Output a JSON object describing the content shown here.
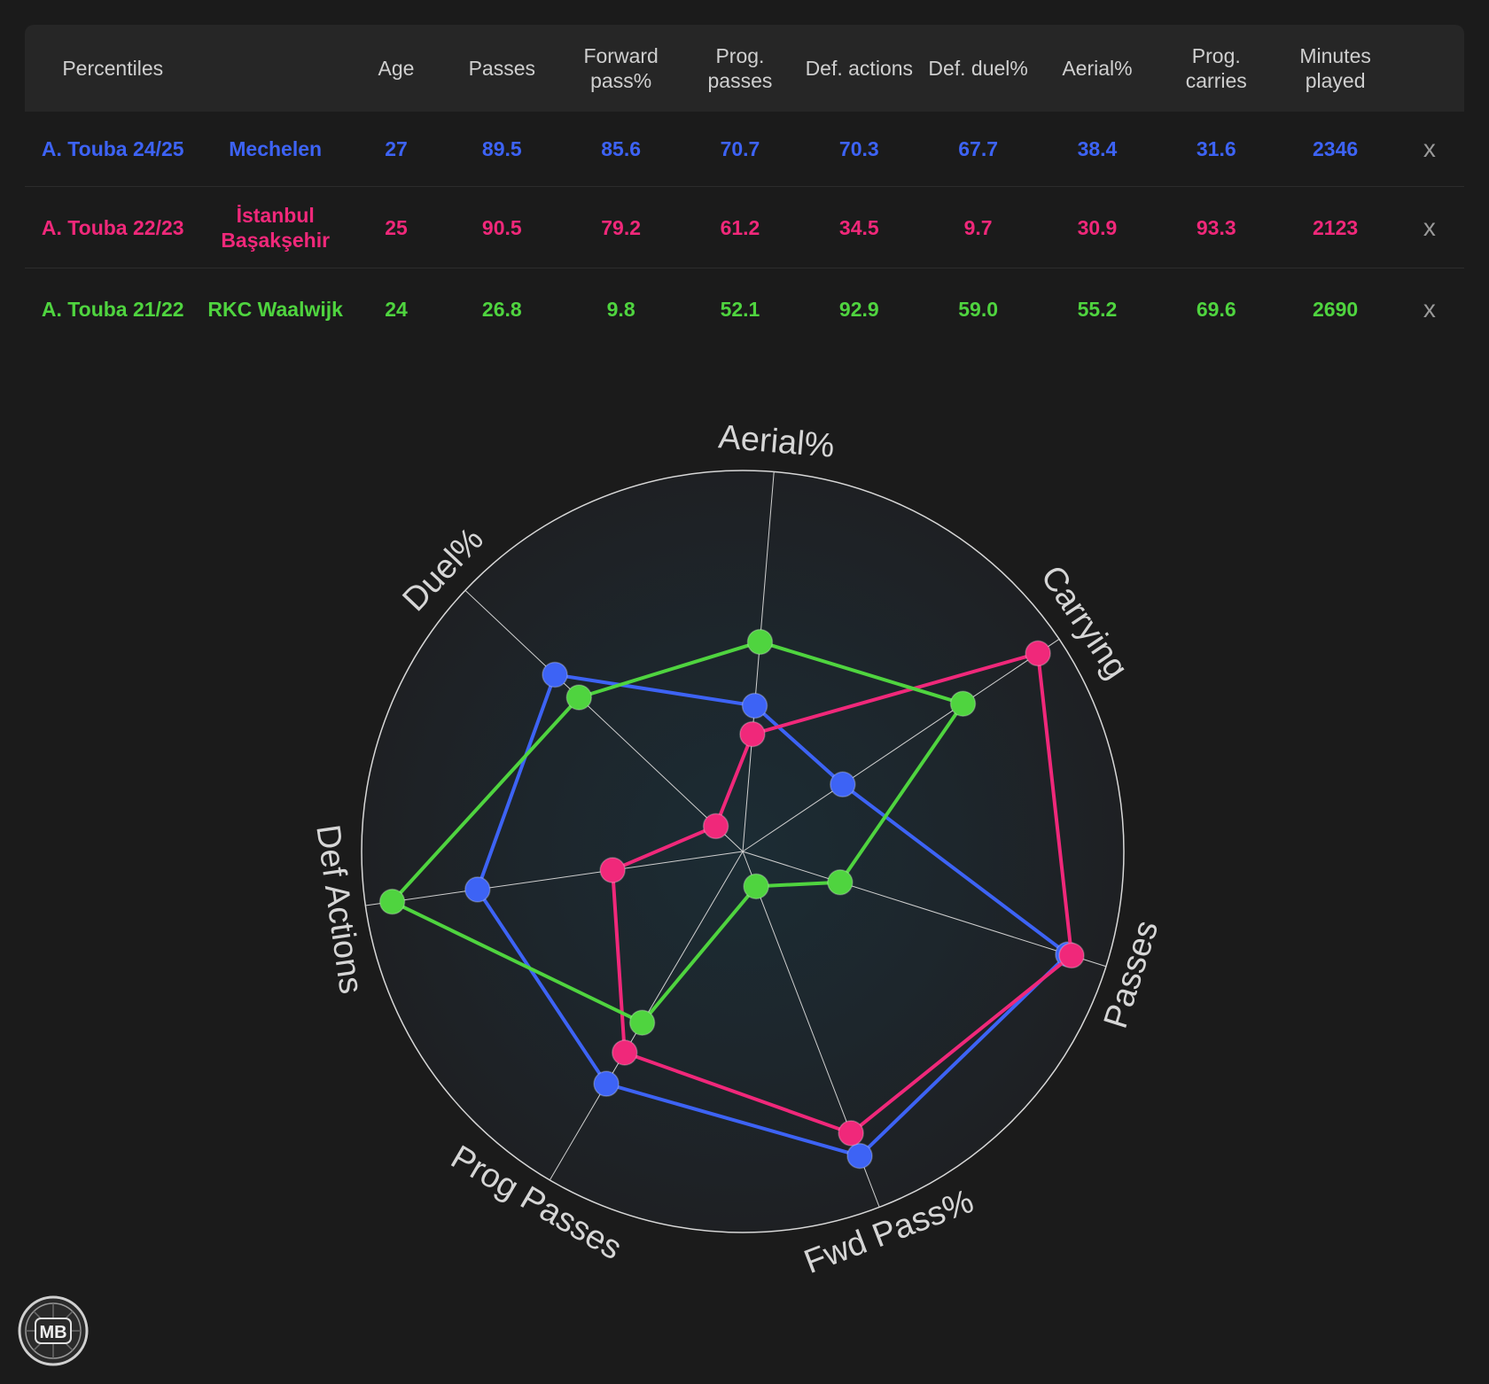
{
  "table": {
    "columns": [
      "Percentiles",
      "",
      "Age",
      "Passes",
      "Forward pass%",
      "Prog. passes",
      "Def. actions",
      "Def. duel%",
      "Aerial%",
      "Prog. carries",
      "Minutes played",
      ""
    ],
    "rows": [
      {
        "player": "A. Touba 24/25",
        "team": "Mechelen",
        "age": "27",
        "passes": "89.5",
        "fwd_pass": "85.6",
        "prog_passes": "70.7",
        "def_actions": "70.3",
        "def_duel": "67.7",
        "aerial": "38.4",
        "prog_carries": "31.6",
        "minutes": "2346",
        "remove": "x",
        "color": "#3d63f5"
      },
      {
        "player": "A. Touba 22/23",
        "team": "İstanbul Başakşehir",
        "age": "25",
        "passes": "90.5",
        "fwd_pass": "79.2",
        "prog_passes": "61.2",
        "def_actions": "34.5",
        "def_duel": "9.7",
        "aerial": "30.9",
        "prog_carries": "93.3",
        "minutes": "2123",
        "remove": "x",
        "color": "#f0287a"
      },
      {
        "player": "A. Touba 21/22",
        "team": "RKC Waalwijk",
        "age": "24",
        "passes": "26.8",
        "fwd_pass": "9.8",
        "prog_passes": "52.1",
        "def_actions": "92.9",
        "def_duel": "59.0",
        "aerial": "55.2",
        "prog_carries": "69.6",
        "minutes": "2690",
        "remove": "x",
        "color": "#4fd43f"
      }
    ]
  },
  "chart_data": {
    "type": "radar",
    "axes": [
      "Aerial%",
      "Carrying",
      "Passes",
      "Fwd Pass%",
      "Prog Passes",
      "Def Actions",
      "Duel%"
    ],
    "range": [
      0,
      100
    ],
    "series": [
      {
        "name": "A. Touba 24/25",
        "color": "#3d63f5",
        "values": [
          38.4,
          31.6,
          89.5,
          85.6,
          70.7,
          70.3,
          67.7
        ]
      },
      {
        "name": "A. Touba 22/23",
        "color": "#f0287a",
        "values": [
          30.9,
          93.3,
          90.5,
          79.2,
          61.2,
          34.5,
          9.7
        ]
      },
      {
        "name": "A. Touba 21/22",
        "color": "#4fd43f",
        "values": [
          55.2,
          69.6,
          26.8,
          9.8,
          52.1,
          92.9,
          59.0
        ]
      }
    ]
  },
  "logo": {
    "text": "MB"
  }
}
